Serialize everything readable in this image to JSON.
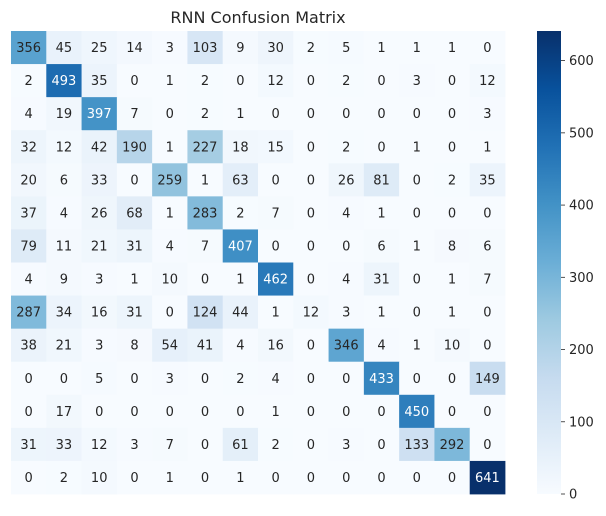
{
  "chart_data": {
    "type": "heatmap",
    "title": "RNN Confusion Matrix",
    "xlabel": "",
    "ylabel": "",
    "colormap": "Blues",
    "color_range": [
      0,
      641
    ],
    "colorbar_ticks": [
      0,
      100,
      200,
      300,
      400,
      500,
      600
    ],
    "grid": false,
    "legend": "colorbar-right",
    "matrix": [
      [
        356,
        45,
        25,
        14,
        3,
        103,
        9,
        30,
        2,
        5,
        1,
        1,
        1,
        0
      ],
      [
        2,
        493,
        35,
        0,
        1,
        2,
        0,
        12,
        0,
        2,
        0,
        3,
        0,
        12
      ],
      [
        4,
        19,
        397,
        7,
        0,
        2,
        1,
        0,
        0,
        0,
        0,
        0,
        0,
        3
      ],
      [
        32,
        12,
        42,
        190,
        1,
        227,
        18,
        15,
        0,
        2,
        0,
        1,
        0,
        1
      ],
      [
        20,
        6,
        33,
        0,
        259,
        1,
        63,
        0,
        0,
        26,
        81,
        0,
        2,
        35
      ],
      [
        37,
        4,
        26,
        68,
        1,
        283,
        2,
        7,
        0,
        4,
        1,
        0,
        0,
        0
      ],
      [
        79,
        11,
        21,
        31,
        4,
        7,
        407,
        0,
        0,
        0,
        6,
        1,
        8,
        6
      ],
      [
        4,
        9,
        3,
        1,
        10,
        0,
        1,
        462,
        0,
        4,
        31,
        0,
        1,
        7
      ],
      [
        287,
        34,
        16,
        31,
        0,
        124,
        44,
        1,
        12,
        3,
        1,
        0,
        1,
        0
      ],
      [
        38,
        21,
        3,
        8,
        54,
        41,
        4,
        16,
        0,
        346,
        4,
        1,
        10,
        0
      ],
      [
        0,
        0,
        5,
        0,
        3,
        0,
        2,
        4,
        0,
        0,
        433,
        0,
        0,
        149
      ],
      [
        0,
        17,
        0,
        0,
        0,
        0,
        0,
        1,
        0,
        0,
        0,
        450,
        0,
        0
      ],
      [
        31,
        33,
        12,
        3,
        7,
        0,
        61,
        2,
        0,
        3,
        0,
        133,
        292,
        0
      ],
      [
        0,
        2,
        10,
        0,
        1,
        0,
        1,
        0,
        0,
        0,
        0,
        0,
        0,
        641
      ]
    ]
  }
}
